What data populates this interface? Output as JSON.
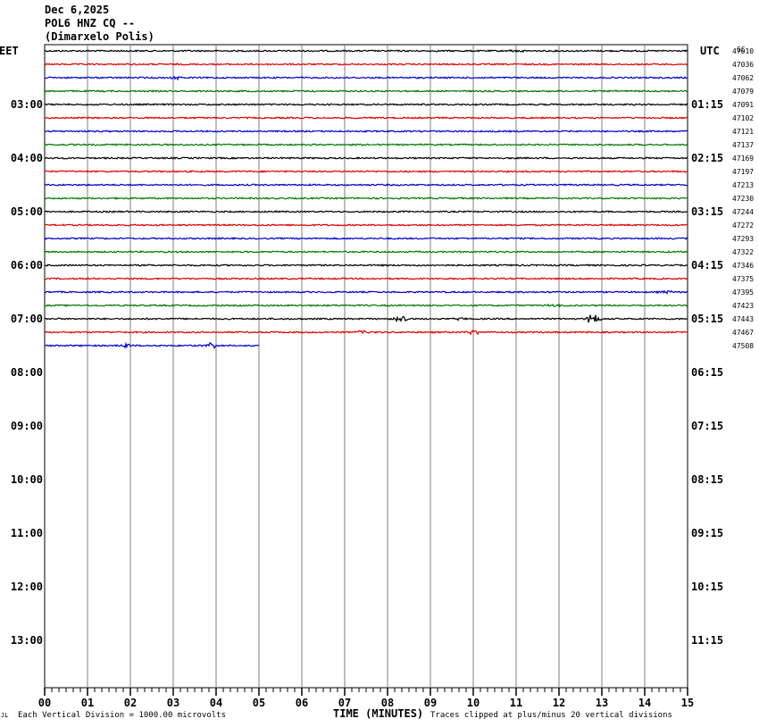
{
  "header": {
    "date": "Dec 6,2025",
    "station": "POL6 HNZ CQ --",
    "location": "(Dimarxelo Polis)"
  },
  "left_tz": "EET",
  "right_tz": "UTC",
  "corner_label": "GC",
  "footer": {
    "scale_note": "Each Vertical Division = 1000.00 microvolts",
    "x_title": "TIME (MINUTES)",
    "clip_note": "Traces clipped at plus/minus 20 vertical divisions",
    "corner_mark": "JL"
  },
  "colors": {
    "cycle": [
      "#000000",
      "#dd0000",
      "#0000cc",
      "#007700"
    ],
    "grid": "#7f7f7f"
  },
  "chart_data": {
    "type": "line",
    "title": "",
    "x_ticks": [
      "00",
      "01",
      "02",
      "03",
      "04",
      "05",
      "06",
      "07",
      "08",
      "09",
      "10",
      "11",
      "12",
      "13",
      "14",
      "15"
    ],
    "xlim": [
      0,
      15
    ],
    "left_hour_labels": [
      "03:00",
      "04:00",
      "05:00",
      "06:00",
      "07:00",
      "08:00",
      "09:00",
      "10:00",
      "11:00",
      "12:00",
      "13:00"
    ],
    "right_hour_labels": [
      "01:15",
      "02:15",
      "03:15",
      "04:15",
      "05:15",
      "06:15",
      "07:15",
      "08:15",
      "09:15",
      "10:15",
      "11:15"
    ],
    "first_hour_row": 4,
    "trace_labels": [
      "47010",
      "47036",
      "47062",
      "47079",
      "47091",
      "47102",
      "47121",
      "47137",
      "47169",
      "47197",
      "47213",
      "47230",
      "47244",
      "47272",
      "47293",
      "47322",
      "47346",
      "47375",
      "47395",
      "47423",
      "47443",
      "47467",
      "47508"
    ],
    "rows_total": 48,
    "last_trace_end_minute": 5.0,
    "events": [
      {
        "row": 0,
        "minute": 11.0,
        "amp": 1.5
      },
      {
        "row": 2,
        "minute": 3.1,
        "amp": 1.5
      },
      {
        "row": 18,
        "minute": 14.5,
        "amp": 1.5
      },
      {
        "row": 19,
        "minute": 11.9,
        "amp": 1.5
      },
      {
        "row": 20,
        "minute": 8.3,
        "amp": 4
      },
      {
        "row": 20,
        "minute": 9.7,
        "amp": 1.5
      },
      {
        "row": 20,
        "minute": 12.8,
        "amp": 6
      },
      {
        "row": 21,
        "minute": 7.4,
        "amp": 2
      },
      {
        "row": 21,
        "minute": 10.0,
        "amp": 3
      },
      {
        "row": 22,
        "minute": 1.9,
        "amp": 2.5
      },
      {
        "row": 22,
        "minute": 3.9,
        "amp": 3
      }
    ]
  }
}
